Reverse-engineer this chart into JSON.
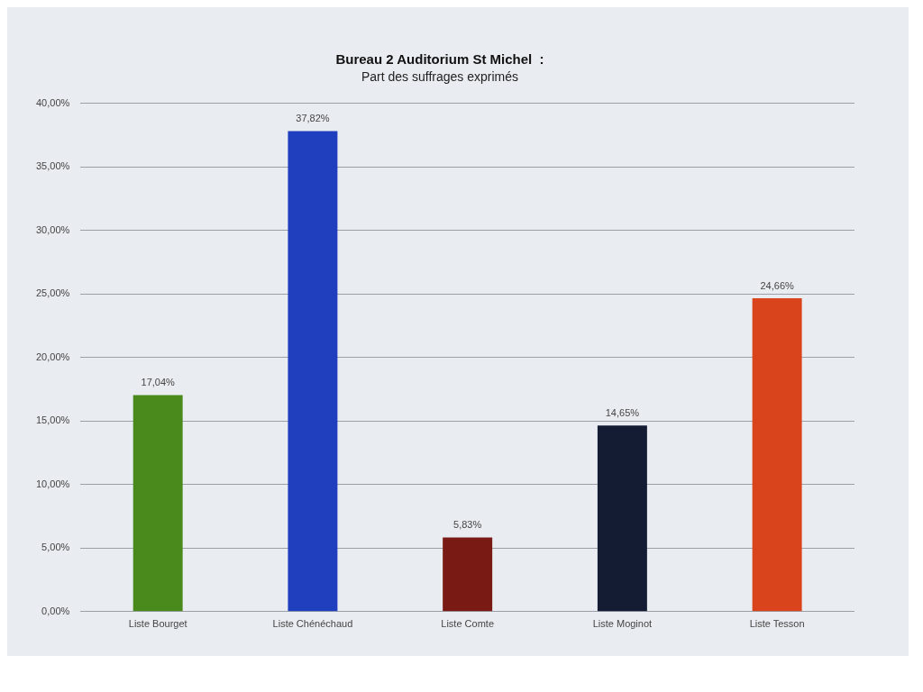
{
  "chart_data": {
    "type": "bar",
    "title": "Bureau 2 Auditorium St Michel  :",
    "subtitle": "Part des suffrages exprimés",
    "categories": [
      "Liste Bourget",
      "Liste Chénéchaud",
      "Liste Comte",
      "Liste Moginot",
      "Liste Tesson"
    ],
    "values": [
      17.04,
      37.82,
      5.83,
      14.65,
      24.66
    ],
    "colors": [
      "#4a8a1c",
      "#1f3fbf",
      "#7a1a14",
      "#141c33",
      "#d9441c"
    ],
    "value_labels": [
      "17,04%",
      "37,82%",
      "5,83%",
      "14,65%",
      "24,66%"
    ],
    "ylim": [
      0,
      40
    ],
    "yticks": [
      {
        "value": 0,
        "label": "0,00%"
      },
      {
        "value": 5,
        "label": "5,00%"
      },
      {
        "value": 10,
        "label": "10,00%"
      },
      {
        "value": 15,
        "label": "15,00%"
      },
      {
        "value": 20,
        "label": "20,00%"
      },
      {
        "value": 25,
        "label": "25,00%"
      },
      {
        "value": 30,
        "label": "30,00%"
      },
      {
        "value": 35,
        "label": "35,00%"
      },
      {
        "value": 40,
        "label": "40,00%"
      }
    ],
    "grid": "y"
  }
}
